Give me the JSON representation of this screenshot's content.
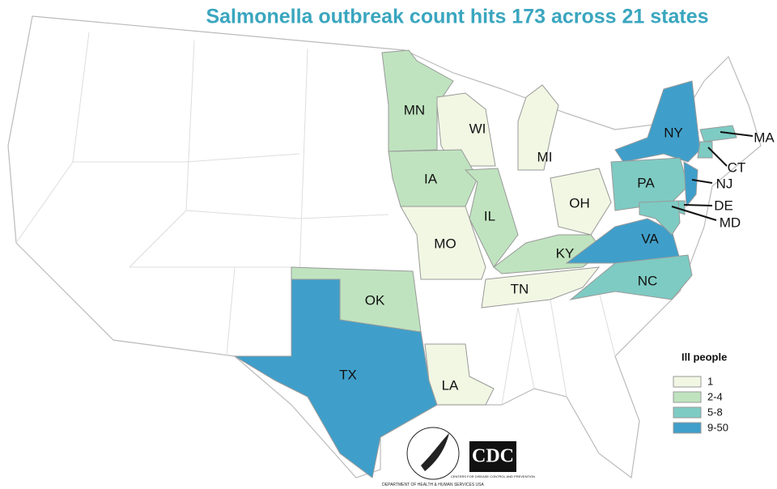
{
  "title": "Salmonella outbreak count hits 173 across 21 states",
  "legend": {
    "title": "Ill people",
    "items": [
      {
        "label": "1",
        "color": "#f1f7e3"
      },
      {
        "label": "2-4",
        "color": "#bfe3bf"
      },
      {
        "label": "5-8",
        "color": "#7ecbc3"
      },
      {
        "label": "9-50",
        "color": "#3f9fca"
      }
    ]
  },
  "states": [
    {
      "label": "MN",
      "color": "#bfe3bf"
    },
    {
      "label": "WI",
      "color": "#f1f7e3"
    },
    {
      "label": "MI",
      "color": "#f1f7e3"
    },
    {
      "label": "IA",
      "color": "#bfe3bf"
    },
    {
      "label": "IL",
      "color": "#bfe3bf"
    },
    {
      "label": "MO",
      "color": "#f1f7e3"
    },
    {
      "label": "OH",
      "color": "#f1f7e3"
    },
    {
      "label": "KY",
      "color": "#bfe3bf"
    },
    {
      "label": "TN",
      "color": "#f1f7e3"
    },
    {
      "label": "OK",
      "color": "#bfe3bf"
    },
    {
      "label": "TX",
      "color": "#3f9fca"
    },
    {
      "label": "LA",
      "color": "#f1f7e3"
    },
    {
      "label": "NY",
      "color": "#3f9fca"
    },
    {
      "label": "PA",
      "color": "#7ecbc3"
    },
    {
      "label": "NJ",
      "color": "#3f9fca"
    },
    {
      "label": "VA",
      "color": "#3f9fca"
    },
    {
      "label": "NC",
      "color": "#7ecbc3"
    },
    {
      "label": "MA",
      "color": "#7ecbc3"
    },
    {
      "label": "CT",
      "color": "#7ecbc3"
    },
    {
      "label": "DE",
      "color": "#7ecbc3"
    },
    {
      "label": "MD",
      "color": "#7ecbc3"
    }
  ],
  "logos": {
    "cdc": "CDC",
    "cdc_sub": "CENTERS FOR DISEASE CONTROL AND PREVENTION",
    "hhs": "DEPARTMENT OF HEALTH & HUMAN SERVICES USA"
  }
}
